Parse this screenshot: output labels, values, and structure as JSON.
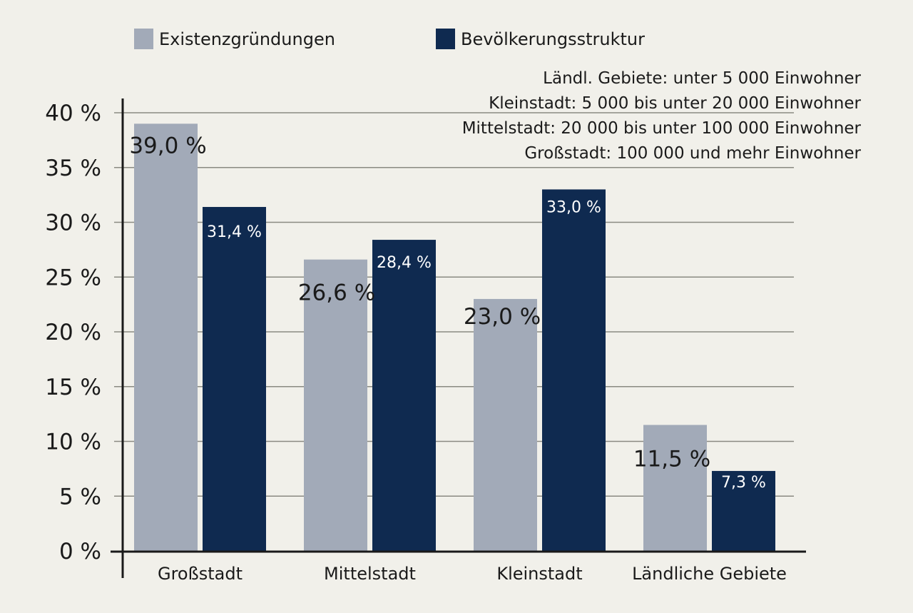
{
  "chart_data": {
    "type": "bar",
    "categories": [
      "Großstadt",
      "Mittelstadt",
      "Kleinstadt",
      "Ländliche Gebiete"
    ],
    "series": [
      {
        "name": "Existenzgründungen",
        "color": "#a2aab8",
        "values": [
          39.0,
          26.6,
          23.0,
          11.5
        ],
        "labels": [
          "39,0 %",
          "26,6 %",
          "23,0 %",
          "11,5 %"
        ]
      },
      {
        "name": "Bevölkerungsstruktur",
        "color": "#0f2a50",
        "values": [
          31.4,
          28.4,
          33.0,
          7.3
        ],
        "labels": [
          "31,4 %",
          "28,4 %",
          "33,0 %",
          "7,3 %"
        ]
      }
    ],
    "ylim": [
      0,
      40
    ],
    "yticks": [
      0,
      5,
      10,
      15,
      20,
      25,
      30,
      35,
      40
    ],
    "ytick_labels": [
      "0 %",
      "5 %",
      "10 %",
      "15 %",
      "20 %",
      "25 %",
      "30 %",
      "35 %",
      "40 %"
    ],
    "grid": true,
    "legend_position": "top-left",
    "annotations": [
      "Ländl. Gebiete: unter 5 000 Einwohner",
      "Kleinstadt: 5 000 bis unter 20 000 Einwohner",
      "Mittelstadt: 20 000 bis unter 100 000 Einwohner",
      "Großstadt: 100 000 und mehr Einwohner"
    ],
    "colors": {
      "background": "#f1f0ea",
      "grid": "#8a8a82",
      "axis": "#1a1a1a"
    }
  }
}
